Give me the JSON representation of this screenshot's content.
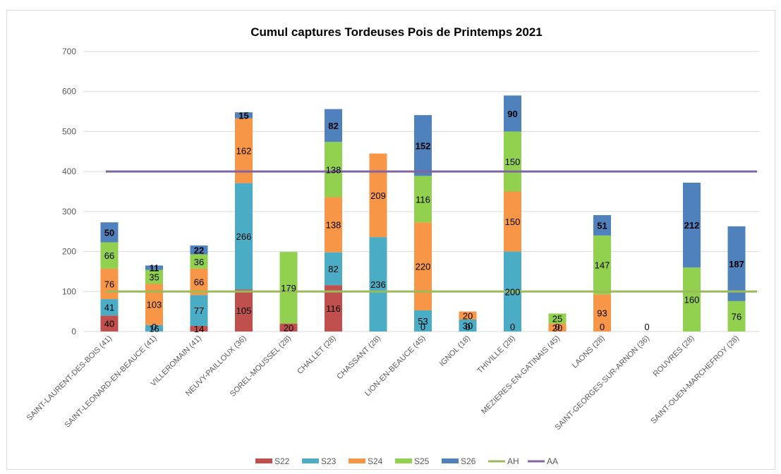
{
  "chart_data": {
    "type": "bar",
    "stacked": true,
    "title": "Cumul captures Tordeuses Pois de Printemps 2021",
    "xlabel": "",
    "ylabel": "",
    "ylim": [
      0,
      700
    ],
    "yticks": [
      0,
      100,
      200,
      300,
      400,
      500,
      600,
      700
    ],
    "grid": true,
    "legend_position": "bottom",
    "categories": [
      "SAINT-LAURENT-DES-BOIS (41)",
      "SAINT-LEONARD-EN-BEAUCE (41)",
      "VILLEROMAIN (41)",
      "NEUVY-PAILLOUX (36)",
      "SOREL-MOUSSEL (28)",
      "CHALLET (28)",
      "CHASSANT (28)",
      "LION-EN-BEAUCE (45)",
      "IGNOL (18)",
      "THIVILLE (28)",
      "MEZIERES-EN-GATINAIS (45)",
      "LAONS (28)",
      "SAINT-GEORGES-SUR-ARNON (36)",
      "ROUVRES (28)",
      "SAINT-OUEN-MARCHEFROY (28)"
    ],
    "series": [
      {
        "name": "S22",
        "color": "#c0504d",
        "values": [
          40,
          0,
          14,
          105,
          20,
          116,
          null,
          null,
          null,
          null,
          null,
          null,
          null,
          null,
          null
        ]
      },
      {
        "name": "S23",
        "color": "#4bacc6",
        "values": [
          41,
          16,
          77,
          266,
          null,
          82,
          236,
          53,
          30,
          200,
          null,
          null,
          null,
          null,
          null
        ]
      },
      {
        "name": "S24",
        "color": "#f79646",
        "values": [
          76,
          103,
          66,
          162,
          null,
          138,
          209,
          220,
          20,
          150,
          20,
          93,
          null,
          null,
          null
        ]
      },
      {
        "name": "S25",
        "color": "#92d050",
        "values": [
          66,
          35,
          36,
          null,
          179,
          138,
          null,
          116,
          null,
          150,
          25,
          147,
          null,
          160,
          76
        ]
      },
      {
        "name": "S26",
        "color": "#4f81bd",
        "values": [
          50,
          11,
          22,
          15,
          null,
          82,
          null,
          152,
          null,
          90,
          null,
          51,
          null,
          212,
          187
        ]
      }
    ],
    "data_labels": [
      {
        "category": 0,
        "series": "S22",
        "value": 40,
        "text": "40"
      },
      {
        "category": 0,
        "series": "S23",
        "value": 41,
        "text": "41"
      },
      {
        "category": 0,
        "series": "S24",
        "value": 76,
        "text": "76"
      },
      {
        "category": 0,
        "series": "S25",
        "value": 66,
        "text": "66"
      },
      {
        "category": 0,
        "series": "S26",
        "value": 50,
        "text": "50",
        "bold": true
      },
      {
        "category": 1,
        "series": "S22",
        "value": 0,
        "text": "0"
      },
      {
        "category": 1,
        "series": "S23",
        "value": 16,
        "text": "16"
      },
      {
        "category": 1,
        "series": "S24",
        "value": 103,
        "text": "103"
      },
      {
        "category": 1,
        "series": "S25",
        "value": 35,
        "text": "35"
      },
      {
        "category": 1,
        "series": "S26",
        "value": 11,
        "text": "11",
        "bold": true
      },
      {
        "category": 2,
        "series": "S22",
        "value": 14,
        "text": "14"
      },
      {
        "category": 2,
        "series": "S23",
        "value": 77,
        "text": "77"
      },
      {
        "category": 2,
        "series": "S24",
        "value": 66,
        "text": "66"
      },
      {
        "category": 2,
        "series": "S25",
        "value": 36,
        "text": "36"
      },
      {
        "category": 2,
        "series": "S26",
        "value": 22,
        "text": "22",
        "bold": true
      },
      {
        "category": 3,
        "series": "S22",
        "value": 105,
        "text": "105"
      },
      {
        "category": 3,
        "series": "S23",
        "value": 266,
        "text": "266"
      },
      {
        "category": 3,
        "series": "S24",
        "value": 162,
        "text": "162"
      },
      {
        "category": 3,
        "series": "S26",
        "value": 15,
        "text": "15",
        "bold": true
      },
      {
        "category": 4,
        "series": "S22",
        "value": 20,
        "text": "20"
      },
      {
        "category": 4,
        "series": "S25",
        "value": 179,
        "text": "179"
      },
      {
        "category": 5,
        "series": "S22",
        "value": 116,
        "text": "116"
      },
      {
        "category": 5,
        "series": "S23",
        "value": 82,
        "text": "82"
      },
      {
        "category": 5,
        "series": "S24",
        "value": 138,
        "text": "138"
      },
      {
        "category": 5,
        "series": "S25",
        "value": 138,
        "text": "138"
      },
      {
        "category": 5,
        "series": "S26",
        "value": 82,
        "text": "82",
        "bold": true
      },
      {
        "category": 6,
        "series": "S23",
        "value": 236,
        "text": "236"
      },
      {
        "category": 6,
        "series": "S24",
        "value": 209,
        "text": "209"
      },
      {
        "category": 7,
        "series": "S22",
        "value": 0,
        "text": "0"
      },
      {
        "category": 7,
        "series": "S23",
        "value": 53,
        "text": "53"
      },
      {
        "category": 7,
        "series": "S24",
        "value": 220,
        "text": "220"
      },
      {
        "category": 7,
        "series": "S25",
        "value": 116,
        "text": "116"
      },
      {
        "category": 7,
        "series": "S26",
        "value": 152,
        "text": "152",
        "bold": true
      },
      {
        "category": 8,
        "series": "S22",
        "value": 0,
        "text": "0"
      },
      {
        "category": 8,
        "series": "S23",
        "value": 30,
        "text": "30"
      },
      {
        "category": 8,
        "series": "S24",
        "value": 20,
        "text": "20"
      },
      {
        "category": 9,
        "series": "S22",
        "value": 0,
        "text": "0"
      },
      {
        "category": 9,
        "series": "S23",
        "value": 200,
        "text": "200"
      },
      {
        "category": 9,
        "series": "S24",
        "value": 150,
        "text": "150"
      },
      {
        "category": 9,
        "series": "S25",
        "value": 150,
        "text": "150"
      },
      {
        "category": 9,
        "series": "S26",
        "value": 90,
        "text": "90",
        "bold": true
      },
      {
        "category": 10,
        "series": "S22",
        "value": 0,
        "text": "0"
      },
      {
        "category": 10,
        "series": "S24",
        "value": 20,
        "text": "20"
      },
      {
        "category": 10,
        "series": "S25",
        "value": 25,
        "text": "25"
      },
      {
        "category": 11,
        "series": "S22",
        "value": 0,
        "text": "0"
      },
      {
        "category": 11,
        "series": "S24",
        "value": 93,
        "text": "93"
      },
      {
        "category": 11,
        "series": "S25",
        "value": 147,
        "text": "147"
      },
      {
        "category": 11,
        "series": "S26",
        "value": 51,
        "text": "51",
        "bold": true
      },
      {
        "category": 12,
        "series": "S22",
        "value": 0,
        "text": "0"
      },
      {
        "category": 13,
        "series": "S25",
        "value": 160,
        "text": "160"
      },
      {
        "category": 13,
        "series": "S26",
        "value": 212,
        "text": "212",
        "bold": true
      },
      {
        "category": 14,
        "series": "S25",
        "value": 76,
        "text": "76"
      },
      {
        "category": 14,
        "series": "S26",
        "value": 187,
        "text": "187",
        "bold": true
      }
    ],
    "reference_lines": [
      {
        "name": "AH",
        "value": 100,
        "color": "#9bbb59"
      },
      {
        "name": "AA",
        "value": 400,
        "color": "#8064a2"
      }
    ]
  }
}
